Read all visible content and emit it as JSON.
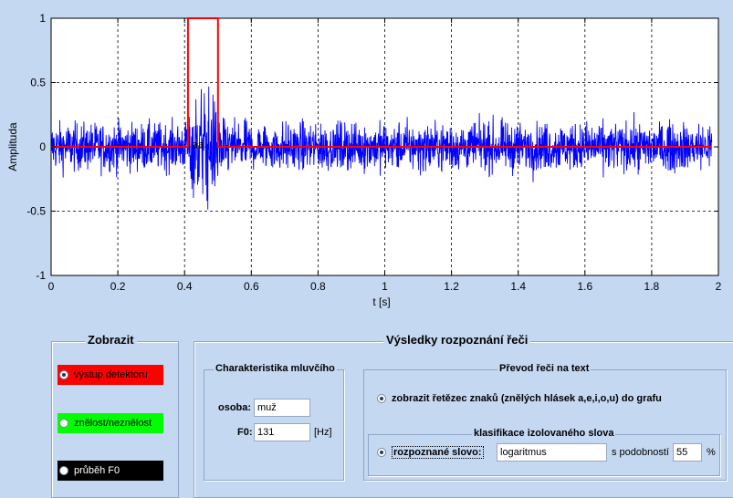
{
  "chart_data": {
    "type": "line",
    "xlabel": "t [s]",
    "ylabel": "Amplituda",
    "xlim": [
      0,
      2
    ],
    "ylim": [
      -1,
      1
    ],
    "x_ticks": [
      "0",
      "0.2",
      "0.4",
      "0.6",
      "0.8",
      "1",
      "1.2",
      "1.4",
      "1.6",
      "1.8",
      "2"
    ],
    "y_ticks": [
      "1",
      "0.5",
      "0",
      "-0.5",
      "-1"
    ],
    "grid": true,
    "series": [
      {
        "color": "#0000ff",
        "style": "waveform",
        "x_range": [
          0,
          1.98
        ],
        "noise_envelope": 0.26,
        "burst": {
          "x_start": 0.4,
          "x_end": 0.52,
          "peak": 0.72
        }
      },
      {
        "color": "#ff0000",
        "style": "step",
        "x": [
          0,
          0.41,
          0.41,
          0.5,
          0.5,
          1.98
        ],
        "y": [
          0,
          0,
          1,
          1,
          0,
          0
        ]
      }
    ],
    "annotations": [
      {
        "x": 0.44,
        "y": -0.01,
        "text": "aa"
      }
    ]
  },
  "zobrazit": {
    "title": "Zobrazit",
    "items": [
      {
        "label": "výstup detektoru",
        "bg": "#ff0000",
        "fg": "#000000",
        "checked": true
      },
      {
        "label": "znělost/neznělost",
        "bg": "#00ff00",
        "fg": "#000000",
        "checked": false
      },
      {
        "label": "průběh F0",
        "bg": "#000000",
        "fg": "#ffffff",
        "checked": false
      }
    ]
  },
  "results": {
    "title": "Výsledky rozpoznání řeči",
    "speaker": {
      "title": "Charakteristika mluvčího",
      "osoba_label": "osoba:",
      "osoba_value": "muž",
      "f0_label": "F0:",
      "f0_value": "131",
      "f0_unit": "[Hz]"
    },
    "transcript": {
      "title": "Převod řeči na text",
      "option_label": "zobrazit řetězec znaků  (znělých hlásek a,e,i,o,u) do grafu",
      "classification": {
        "title": "klasifikace izolovaného slova",
        "option_label": "rozpoznané slovo:",
        "word_value": "logaritmus",
        "similarity_label": "s podobností",
        "similarity_value": "55",
        "percent_label": "%"
      }
    }
  }
}
